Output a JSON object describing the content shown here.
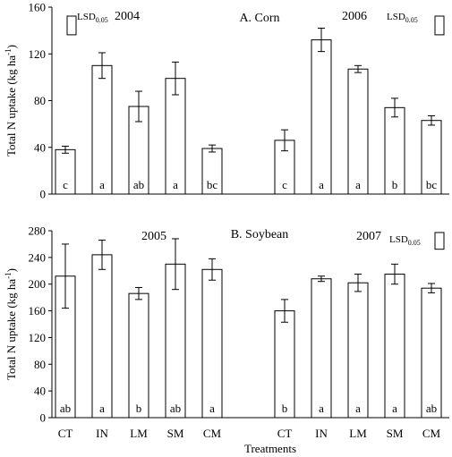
{
  "chart_data": [
    {
      "type": "bar",
      "title": "A. Corn",
      "ylabel": "Total N uptake (kg ha",
      "ylabel_sup": "-1",
      "ylim": [
        0,
        160
      ],
      "yticks": [
        0,
        40,
        80,
        120,
        160
      ],
      "lsd_label": "LSD",
      "lsd_sub": "0.05",
      "groups": [
        {
          "year": "2004",
          "lsd_position": "top-left",
          "lsd_value": 16,
          "categories": [
            "CT",
            "IN",
            "LM",
            "SM",
            "CM"
          ],
          "values": [
            38,
            110,
            75,
            99,
            39
          ],
          "errors": [
            3,
            11,
            13,
            14,
            3
          ],
          "letters": [
            "c",
            "a",
            "ab",
            "a",
            "bc"
          ]
        },
        {
          "year": "2006",
          "lsd_position": "top-right",
          "lsd_value": 16,
          "categories": [
            "CT",
            "IN",
            "LM",
            "SM",
            "CM"
          ],
          "values": [
            46,
            132,
            107,
            74,
            63
          ],
          "errors": [
            9,
            10,
            3,
            8,
            4
          ],
          "letters": [
            "c",
            "a",
            "a",
            "b",
            "bc"
          ]
        }
      ]
    },
    {
      "type": "bar",
      "title": "B. Soybean",
      "ylabel": "Total N uptake (kg ha",
      "ylabel_sup": "-1",
      "xlabel": "Treatments",
      "ylim": [
        0,
        280
      ],
      "yticks": [
        0,
        40,
        80,
        120,
        160,
        200,
        240,
        280
      ],
      "lsd_label": "LSD",
      "lsd_sub": "0.05",
      "groups": [
        {
          "year": "2005",
          "categories": [
            "CT",
            "IN",
            "LM",
            "SM",
            "CM"
          ],
          "values": [
            212,
            244,
            186,
            230,
            222
          ],
          "errors": [
            48,
            22,
            9,
            38,
            16
          ],
          "letters": [
            "ab",
            "a",
            "b",
            "ab",
            "a"
          ]
        },
        {
          "year": "2007",
          "lsd_position": "top-right",
          "lsd_value": 25,
          "categories": [
            "CT",
            "IN",
            "LM",
            "SM",
            "CM"
          ],
          "values": [
            160,
            208,
            202,
            215,
            194
          ],
          "errors": [
            17,
            4,
            13,
            15,
            7
          ],
          "letters": [
            "b",
            "a",
            "a",
            "a",
            "ab"
          ]
        }
      ]
    }
  ]
}
